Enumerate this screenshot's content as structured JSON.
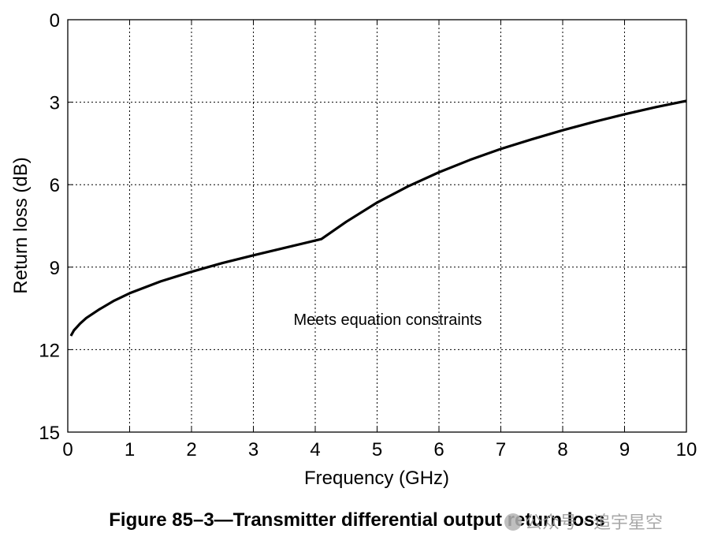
{
  "chart_data": {
    "type": "line",
    "title": "",
    "xlabel": "Frequency (GHz)",
    "ylabel": "Return loss (dB)",
    "xlim": [
      0,
      10
    ],
    "ylim": [
      0,
      15
    ],
    "y_inverted": true,
    "grid": true,
    "x_ticks": [
      "0",
      "1",
      "2",
      "3",
      "4",
      "5",
      "6",
      "7",
      "8",
      "9",
      "10"
    ],
    "y_ticks": [
      "0",
      "3",
      "6",
      "9",
      "12",
      "15"
    ],
    "annotations": [
      "Meets equation constraints"
    ],
    "series": [
      {
        "x": [
          0.05,
          0.1,
          0.2,
          0.3,
          0.5,
          0.75,
          1.0,
          1.5,
          2.0,
          2.5,
          3.0,
          3.5,
          4.1,
          4.5,
          5.0,
          5.5,
          6.0,
          6.5,
          7.0,
          7.5,
          8.0,
          8.5,
          9.0,
          9.5,
          10.0
        ],
        "y": [
          11.5,
          11.3,
          11.05,
          10.85,
          10.55,
          10.22,
          9.95,
          9.52,
          9.17,
          8.85,
          8.57,
          8.3,
          7.98,
          7.35,
          6.65,
          6.06,
          5.55,
          5.1,
          4.7,
          4.35,
          4.02,
          3.72,
          3.44,
          3.18,
          2.95
        ]
      }
    ]
  },
  "caption": "Figure 85–3—Transmitter differential output return loss",
  "watermark": "公众号 · 追宇星空",
  "colors": {
    "line": "#000000",
    "grid": "#000000",
    "background": "#ffffff"
  }
}
